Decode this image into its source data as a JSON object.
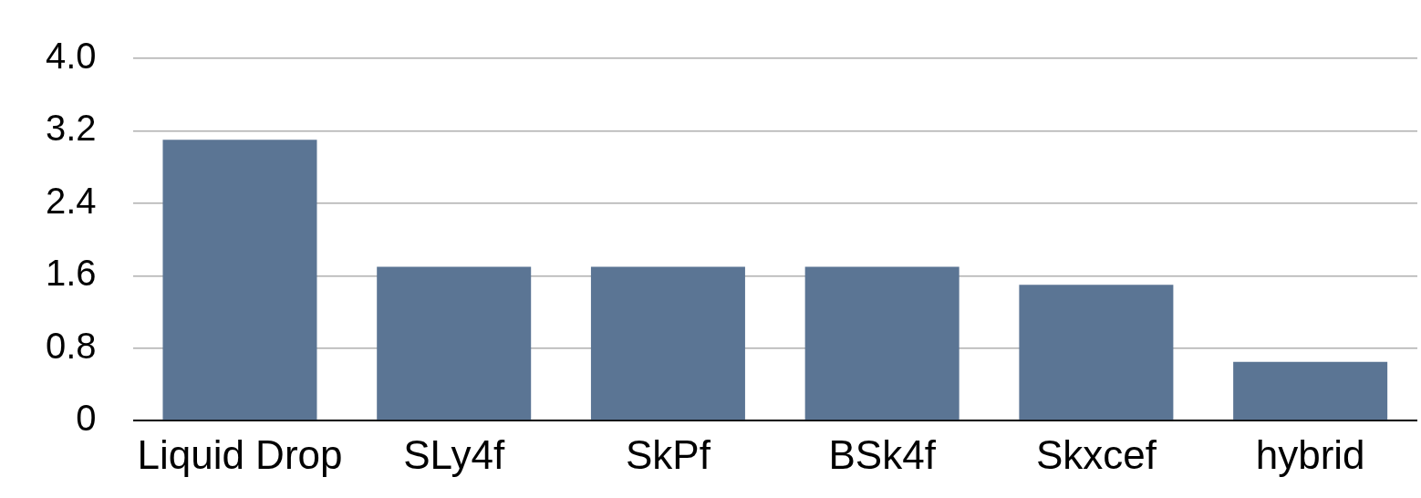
{
  "chart_data": {
    "type": "bar",
    "categories": [
      "Liquid Drop",
      "SLy4f",
      "SkPf",
      "BSk4f",
      "Skxcef",
      "hybrid"
    ],
    "values": [
      3.1,
      1.7,
      1.7,
      1.7,
      1.5,
      0.65
    ],
    "color": "#5b7594",
    "ylim": [
      0,
      4.0
    ],
    "yticks": [
      {
        "value": 0,
        "label": "0"
      },
      {
        "value": 0.8,
        "label": "0.8"
      },
      {
        "value": 1.6,
        "label": "1.6"
      },
      {
        "value": 2.4,
        "label": "2.4"
      },
      {
        "value": 3.2,
        "label": "3.2"
      },
      {
        "value": 4.0,
        "label": "4.0"
      }
    ],
    "grid": "y",
    "legend": false
  }
}
